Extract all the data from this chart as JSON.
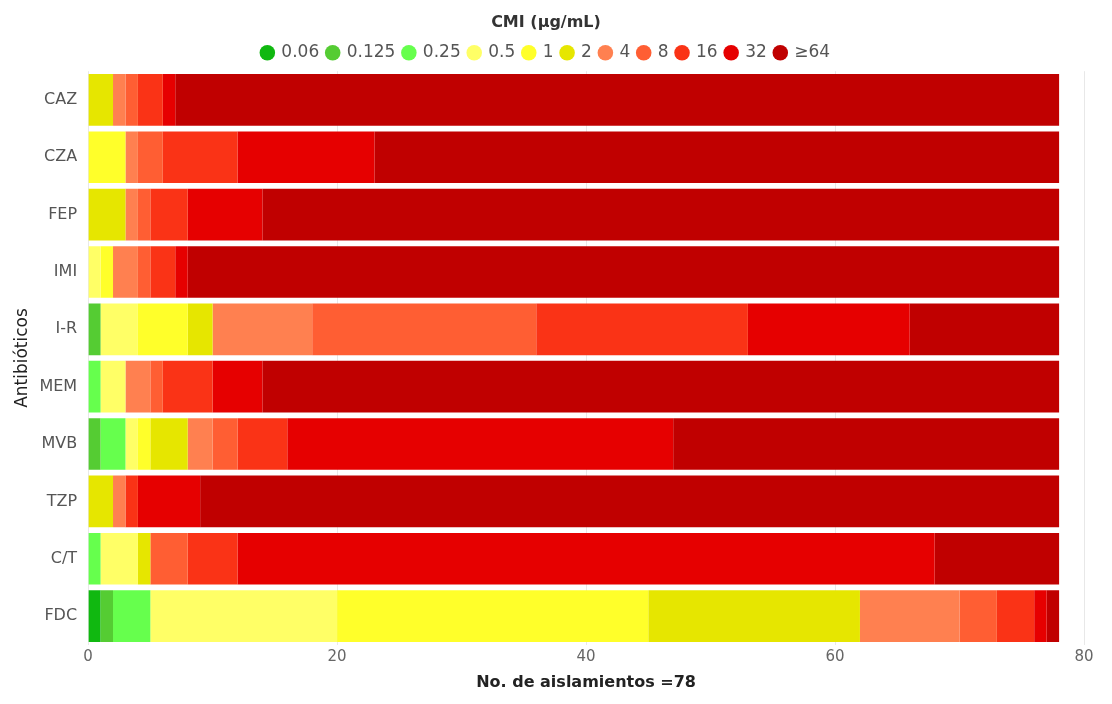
{
  "chart_data": {
    "type": "bar",
    "orientation": "horizontal",
    "stacked": true,
    "legend_title": "CMI (µg/mL)",
    "legend": "top",
    "xlabel": "No. de aislamientos =78",
    "ylabel": "Antibióticos",
    "grid": "x",
    "xlim": [
      0,
      80
    ],
    "xticks": [
      0,
      20,
      40,
      60,
      80
    ],
    "categories": [
      "CAZ",
      "CZA",
      "FEP",
      "IMI",
      "I-R",
      "MEM",
      "MVB",
      "TZP",
      "C/T",
      "FDC"
    ],
    "series": [
      {
        "name": "0.06",
        "color": "#10b810",
        "values": [
          0,
          0,
          0,
          0,
          0,
          0,
          0,
          0,
          0,
          1
        ]
      },
      {
        "name": "0.125",
        "color": "#55cc33",
        "values": [
          0,
          0,
          0,
          0,
          1,
          0,
          1,
          0,
          0,
          1
        ]
      },
      {
        "name": "0.25",
        "color": "#66ff4d",
        "values": [
          0,
          0,
          0,
          0,
          0,
          1,
          2,
          0,
          1,
          3
        ]
      },
      {
        "name": "0.5",
        "color": "#ffff66",
        "values": [
          0,
          0,
          0,
          1,
          3,
          2,
          1,
          0,
          3,
          15
        ]
      },
      {
        "name": "1",
        "color": "#ffff2a",
        "values": [
          0,
          3,
          0,
          1,
          4,
          0,
          1,
          0,
          0,
          25
        ]
      },
      {
        "name": "2",
        "color": "#e6e600",
        "values": [
          2,
          0,
          3,
          0,
          2,
          0,
          3,
          2,
          1,
          17
        ]
      },
      {
        "name": "4",
        "color": "#ff8050",
        "values": [
          1,
          1,
          1,
          2,
          8,
          2,
          2,
          1,
          0,
          8
        ]
      },
      {
        "name": "8",
        "color": "#ff5e33",
        "values": [
          1,
          2,
          1,
          1,
          18,
          1,
          2,
          0,
          3,
          3
        ]
      },
      {
        "name": "16",
        "color": "#fa3316",
        "values": [
          2,
          6,
          3,
          2,
          17,
          4,
          4,
          1,
          4,
          3
        ]
      },
      {
        "name": "32",
        "color": "#e60000",
        "values": [
          1,
          11,
          6,
          1,
          13,
          4,
          31,
          5,
          56,
          1
        ]
      },
      {
        "name": "≥64",
        "color": "#c00000",
        "values": [
          71,
          55,
          64,
          70,
          12,
          64,
          31,
          69,
          10,
          1
        ]
      }
    ]
  }
}
